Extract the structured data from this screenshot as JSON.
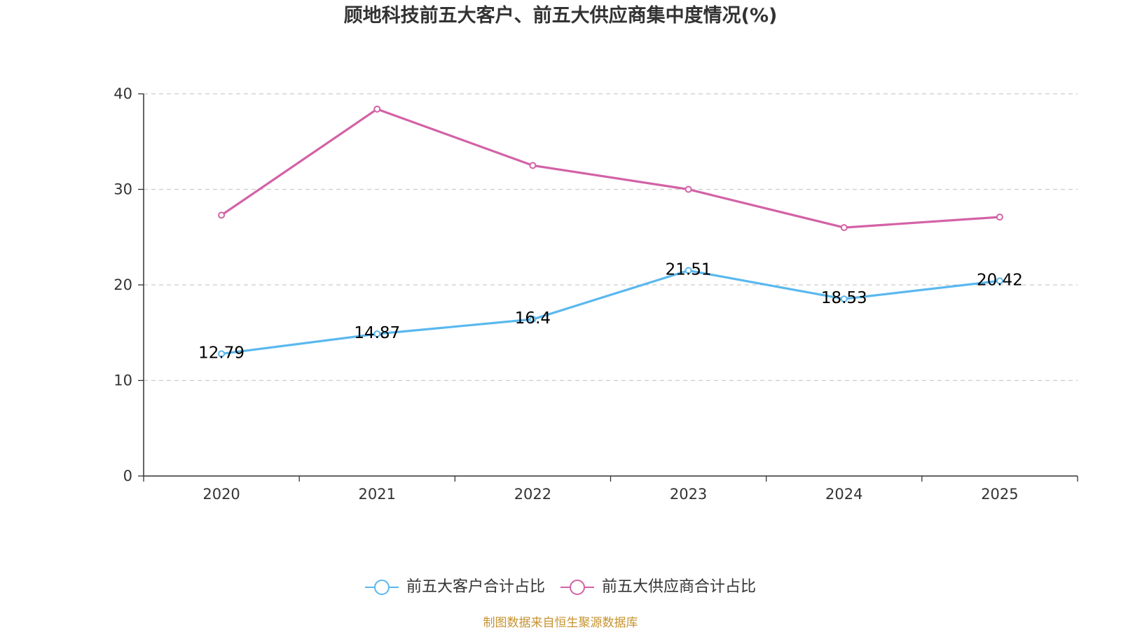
{
  "chart_data": {
    "type": "line",
    "title": "顾地科技前五大客户、前五大供应商集中度情况(%)",
    "categories": [
      "2020",
      "2021",
      "2022",
      "2023",
      "2024",
      "2025"
    ],
    "series": [
      {
        "name": "前五大客户合计占比",
        "values": [
          12.79,
          14.87,
          16.4,
          21.51,
          18.53,
          20.42
        ],
        "color": "#5ab8ee",
        "show_labels": true
      },
      {
        "name": "前五大供应商合计占比",
        "values": [
          27.3,
          38.4,
          32.5,
          30.0,
          26.0,
          27.1
        ],
        "color": "#d362a6",
        "show_labels": false
      }
    ],
    "ylim": [
      0,
      40
    ],
    "yticks": [
      0,
      10,
      20,
      30,
      40
    ],
    "grid": true,
    "legend": "bottom-center"
  },
  "footer": {
    "source_note": "制图数据来自恒生聚源数据库"
  },
  "colors": {
    "axis": "#333333",
    "grid": "#cccccc",
    "label": "#000000",
    "footer_text": "#c69330"
  }
}
